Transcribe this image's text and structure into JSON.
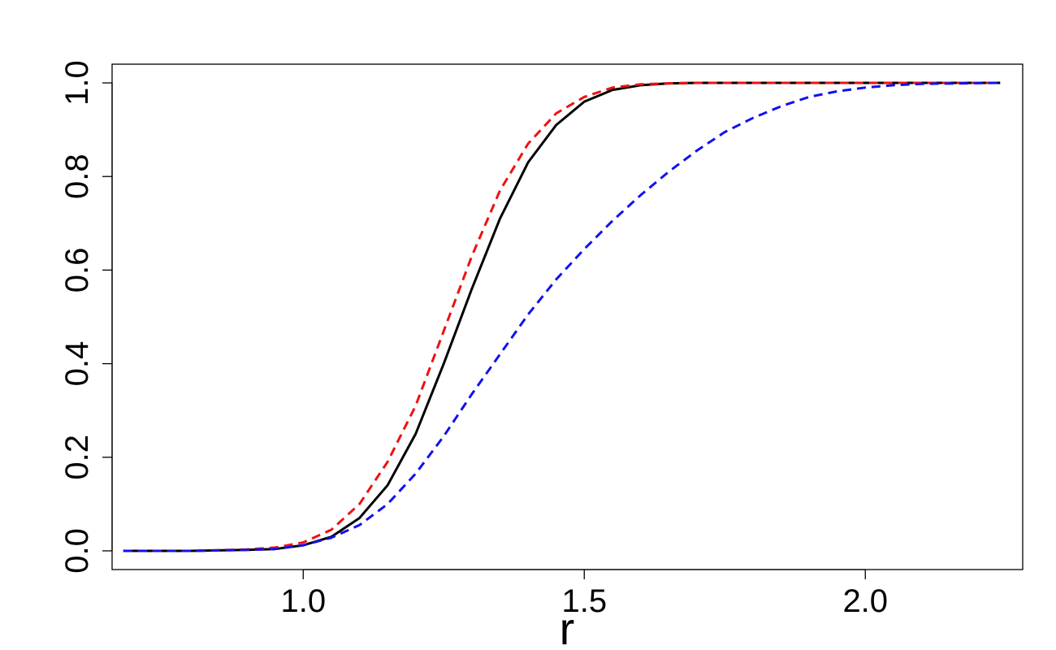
{
  "chart_data": {
    "type": "line",
    "title": "",
    "xlabel": "r",
    "ylabel": "",
    "xlim": [
      0.66,
      2.28
    ],
    "ylim": [
      -0.04,
      1.04
    ],
    "xticks": [
      1.0,
      1.5,
      2.0
    ],
    "xtick_labels": [
      "1.0",
      "1.5",
      "2.0"
    ],
    "yticks": [
      0.0,
      0.2,
      0.4,
      0.6,
      0.8,
      1.0
    ],
    "ytick_labels": [
      "0.0",
      "0.2",
      "0.4",
      "0.6",
      "0.8",
      "1.0"
    ],
    "grid": false,
    "legend": "none",
    "series": [
      {
        "color": "#000000",
        "style": "solid",
        "x": [
          0.68,
          0.8,
          0.9,
          0.95,
          1.0,
          1.05,
          1.1,
          1.15,
          1.2,
          1.25,
          1.3,
          1.35,
          1.4,
          1.45,
          1.5,
          1.55,
          1.6,
          1.65,
          1.7,
          1.8,
          2.0,
          2.24
        ],
        "y": [
          0.0,
          0.0,
          0.002,
          0.004,
          0.012,
          0.03,
          0.07,
          0.14,
          0.25,
          0.4,
          0.56,
          0.71,
          0.83,
          0.91,
          0.96,
          0.985,
          0.995,
          0.999,
          1.0,
          1.0,
          1.0,
          1.0
        ]
      },
      {
        "color": "#ee1111",
        "style": "dashed",
        "x": [
          0.68,
          0.8,
          0.9,
          0.95,
          1.0,
          1.05,
          1.1,
          1.15,
          1.2,
          1.25,
          1.3,
          1.35,
          1.4,
          1.45,
          1.5,
          1.55,
          1.6,
          1.65,
          1.7,
          1.8,
          2.0,
          2.24
        ],
        "y": [
          0.0,
          0.0,
          0.003,
          0.007,
          0.018,
          0.045,
          0.1,
          0.19,
          0.31,
          0.47,
          0.63,
          0.77,
          0.87,
          0.935,
          0.97,
          0.99,
          0.997,
          0.999,
          1.0,
          1.0,
          1.0,
          1.0
        ]
      },
      {
        "color": "#1111ee",
        "style": "dashed",
        "x": [
          0.68,
          0.8,
          0.9,
          0.95,
          1.0,
          1.05,
          1.1,
          1.15,
          1.2,
          1.25,
          1.3,
          1.35,
          1.4,
          1.45,
          1.5,
          1.55,
          1.6,
          1.65,
          1.7,
          1.75,
          1.8,
          1.85,
          1.9,
          1.95,
          2.0,
          2.05,
          2.1,
          2.24
        ],
        "y": [
          0.0,
          0.0,
          0.002,
          0.004,
          0.012,
          0.028,
          0.055,
          0.1,
          0.165,
          0.245,
          0.335,
          0.42,
          0.505,
          0.58,
          0.645,
          0.705,
          0.76,
          0.81,
          0.855,
          0.895,
          0.925,
          0.95,
          0.97,
          0.982,
          0.99,
          0.995,
          0.998,
          1.0
        ]
      }
    ]
  }
}
